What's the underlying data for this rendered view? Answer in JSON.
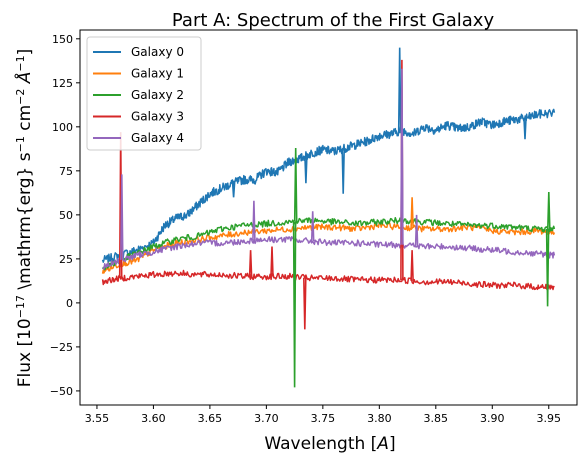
{
  "chart_data": {
    "type": "line",
    "title": "Part A: Spectrum of the First Galaxy",
    "xlabel": "Wavelength [$A$]",
    "ylabel": "Flux [$10^{-17}$ \\mathrm{erg} s$^{-1}$ cm$^{-2}$ $A^{-1}$]",
    "xlim": [
      3.535,
      3.975
    ],
    "ylim": [
      -58,
      155
    ],
    "xticks": [
      3.55,
      3.6,
      3.65,
      3.7,
      3.75,
      3.8,
      3.85,
      3.9,
      3.95
    ],
    "xtick_labels": [
      "3.55",
      "3.60",
      "3.65",
      "3.70",
      "3.75",
      "3.80",
      "3.85",
      "3.90",
      "3.95"
    ],
    "yticks": [
      -50,
      -25,
      0,
      25,
      50,
      75,
      100,
      125,
      150
    ],
    "ytick_labels": [
      "−50",
      "−25",
      "0",
      "25",
      "50",
      "75",
      "100",
      "125",
      "150"
    ],
    "grid": false,
    "legend_position": "top-left",
    "series": [
      {
        "name": "Galaxy 0",
        "color": "#1f77b4",
        "x": [
          3.555,
          3.57,
          3.585,
          3.6,
          3.61,
          3.62,
          3.63,
          3.64,
          3.65,
          3.66,
          3.67,
          3.68,
          3.69,
          3.7,
          3.71,
          3.72,
          3.73,
          3.74,
          3.75,
          3.76,
          3.77,
          3.78,
          3.79,
          3.8,
          3.81,
          3.82,
          3.83,
          3.84,
          3.85,
          3.86,
          3.87,
          3.88,
          3.89,
          3.9,
          3.91,
          3.92,
          3.93,
          3.94,
          3.955
        ],
        "y": [
          24,
          27,
          30,
          34,
          44,
          48,
          50,
          56,
          62,
          65,
          68,
          70,
          70,
          75,
          74,
          80,
          82,
          85,
          87,
          86,
          88,
          90,
          92,
          95,
          96,
          98,
          96,
          100,
          98,
          101,
          99,
          100,
          103,
          101,
          103,
          104,
          105,
          107,
          108
        ]
      },
      {
        "name": "Galaxy 1",
        "color": "#ff7f0e",
        "x": [
          3.555,
          3.57,
          3.585,
          3.6,
          3.62,
          3.64,
          3.66,
          3.68,
          3.7,
          3.72,
          3.74,
          3.76,
          3.78,
          3.8,
          3.82,
          3.84,
          3.86,
          3.88,
          3.9,
          3.92,
          3.94,
          3.955
        ],
        "y": [
          18,
          22,
          24,
          30,
          34,
          36,
          38,
          40,
          41,
          42,
          43,
          43,
          42,
          44,
          43,
          42,
          42,
          43,
          41,
          40,
          41,
          40
        ]
      },
      {
        "name": "Galaxy 2",
        "color": "#2ca02c",
        "x": [
          3.555,
          3.57,
          3.585,
          3.6,
          3.62,
          3.64,
          3.66,
          3.68,
          3.7,
          3.72,
          3.74,
          3.76,
          3.78,
          3.8,
          3.82,
          3.84,
          3.86,
          3.88,
          3.9,
          3.92,
          3.94,
          3.955
        ],
        "y": [
          20,
          24,
          28,
          32,
          36,
          38,
          42,
          44,
          45,
          46,
          47,
          46,
          45,
          46,
          47,
          46,
          45,
          44,
          44,
          43,
          42,
          42
        ]
      },
      {
        "name": "Galaxy 3",
        "color": "#d62728",
        "x": [
          3.555,
          3.57,
          3.585,
          3.6,
          3.62,
          3.64,
          3.66,
          3.68,
          3.7,
          3.72,
          3.74,
          3.76,
          3.78,
          3.8,
          3.82,
          3.84,
          3.86,
          3.88,
          3.9,
          3.92,
          3.94,
          3.955
        ],
        "y": [
          12,
          14,
          15,
          16,
          17,
          16,
          16,
          15,
          15,
          15,
          14,
          14,
          13,
          13,
          13,
          12,
          12,
          11,
          10,
          10,
          9,
          9
        ]
      },
      {
        "name": "Galaxy 4",
        "color": "#9467bd",
        "x": [
          3.555,
          3.57,
          3.585,
          3.6,
          3.62,
          3.64,
          3.66,
          3.68,
          3.7,
          3.72,
          3.74,
          3.76,
          3.78,
          3.8,
          3.82,
          3.84,
          3.86,
          3.88,
          3.9,
          3.92,
          3.94,
          3.955
        ],
        "y": [
          20,
          24,
          27,
          29,
          32,
          34,
          34,
          35,
          36,
          36,
          35,
          34,
          34,
          33,
          33,
          32,
          32,
          31,
          30,
          29,
          28,
          27
        ]
      }
    ],
    "spikes": [
      {
        "series": 0,
        "x": 3.818,
        "y": 145
      },
      {
        "series": 0,
        "x": 3.768,
        "y": 62
      },
      {
        "series": 0,
        "x": 3.735,
        "y": 68
      },
      {
        "series": 0,
        "x": 3.929,
        "y": 93
      },
      {
        "series": 0,
        "x": 3.671,
        "y": 60
      },
      {
        "series": 1,
        "x": 3.829,
        "y": 60
      },
      {
        "series": 2,
        "x": 3.725,
        "y": -48
      },
      {
        "series": 2,
        "x": 3.726,
        "y": 88
      },
      {
        "series": 2,
        "x": 3.95,
        "y": 63
      },
      {
        "series": 2,
        "x": 3.949,
        "y": -2
      },
      {
        "series": 3,
        "x": 3.571,
        "y": 97
      },
      {
        "series": 3,
        "x": 3.734,
        "y": -15
      },
      {
        "series": 3,
        "x": 3.82,
        "y": 138
      },
      {
        "series": 3,
        "x": 3.829,
        "y": 30
      },
      {
        "series": 3,
        "x": 3.705,
        "y": 32
      },
      {
        "series": 3,
        "x": 3.686,
        "y": 30
      },
      {
        "series": 4,
        "x": 3.572,
        "y": 73
      },
      {
        "series": 4,
        "x": 3.82,
        "y": 133
      },
      {
        "series": 4,
        "x": 3.689,
        "y": 58
      },
      {
        "series": 4,
        "x": 3.741,
        "y": 52
      },
      {
        "series": 4,
        "x": 3.833,
        "y": 50
      }
    ]
  }
}
